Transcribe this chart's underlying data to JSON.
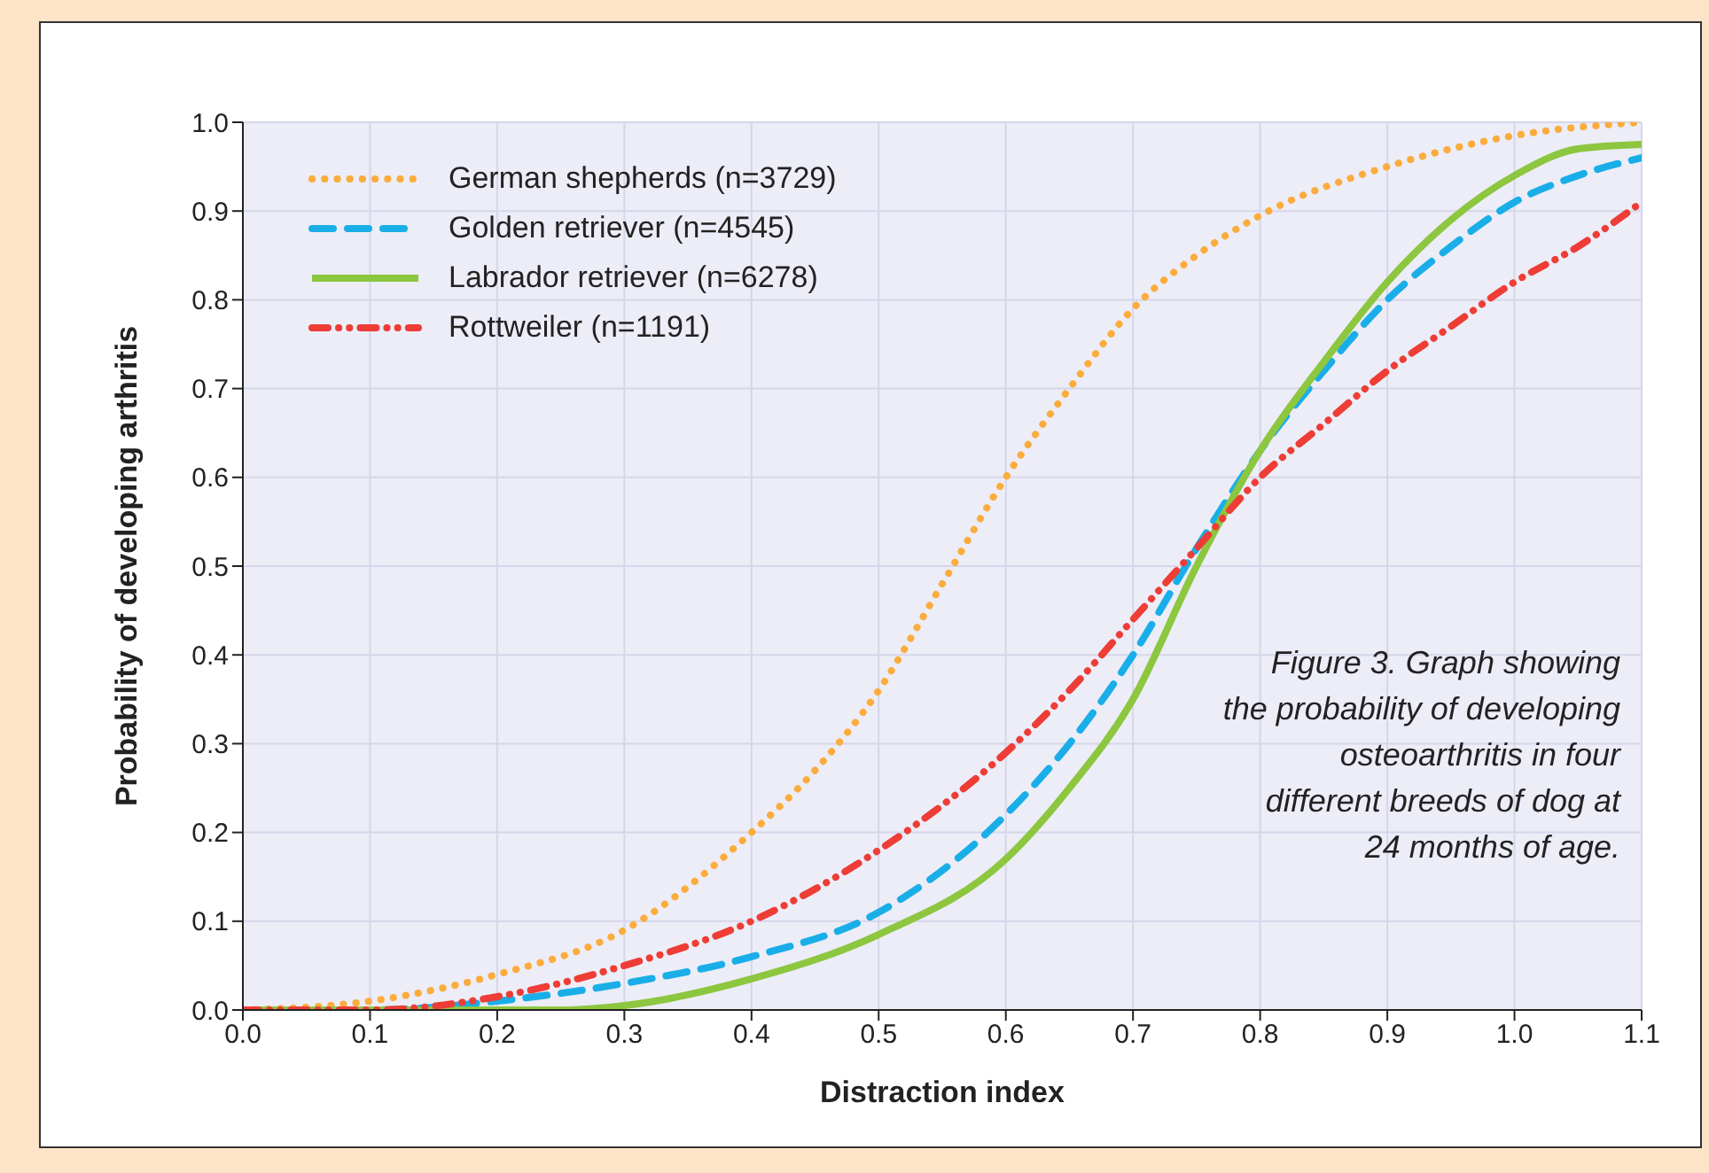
{
  "chart_data": {
    "type": "line",
    "xlabel": "Distraction index",
    "ylabel": "Probability of developing arthritis",
    "xlim": [
      0,
      1.1
    ],
    "xticks": [
      {
        "value": 0,
        "label": "0.0"
      },
      0.1,
      0.2,
      0.3,
      0.4,
      0.5,
      0.6,
      0.7,
      0.8,
      0.9,
      {
        "value": 1,
        "label": "1.0"
      },
      1.1
    ],
    "ylim": [
      0,
      1
    ],
    "yticks": [
      {
        "value": 0,
        "label": "0.0"
      },
      0.1,
      0.2,
      0.3,
      0.4,
      0.5,
      0.6,
      0.7,
      0.8,
      0.9,
      {
        "value": 1,
        "label": "1.0"
      }
    ],
    "grid": true,
    "legend": "top left",
    "marker": "none",
    "annotations": [
      "Figure 3. Graph showing the probability of developing osteoarthritis in four different breeds of dog at 24 months of age."
    ],
    "series": [
      {
        "name": "German shepherds (n=3729)",
        "color": "#fbac3c",
        "line_style": "dotted",
        "x": [
          0,
          0.1,
          0.2,
          0.3,
          0.4,
          0.45,
          0.5,
          0.55,
          0.6,
          0.65,
          0.7,
          0.75,
          0.8,
          0.9,
          1.0,
          1.1
        ],
        "values": [
          0,
          0.01,
          0.04,
          0.09,
          0.2,
          0.27,
          0.36,
          0.48,
          0.6,
          0.7,
          0.79,
          0.85,
          0.895,
          0.95,
          0.985,
          1.0
        ]
      },
      {
        "name": "Golden retriever (n=4545)",
        "color": "#1aaee8",
        "line_style": "dashed",
        "x": [
          0,
          0.1,
          0.2,
          0.3,
          0.4,
          0.5,
          0.6,
          0.65,
          0.7,
          0.75,
          0.8,
          0.85,
          0.9,
          0.95,
          1.0,
          1.05,
          1.1
        ],
        "values": [
          0,
          0,
          0.01,
          0.03,
          0.06,
          0.11,
          0.22,
          0.3,
          0.4,
          0.52,
          0.63,
          0.72,
          0.8,
          0.86,
          0.91,
          0.94,
          0.96
        ]
      },
      {
        "name": "Labrador retriever (n=6278)",
        "color": "#8dc63f",
        "line_style": "solid",
        "x": [
          0,
          0.1,
          0.2,
          0.25,
          0.3,
          0.4,
          0.5,
          0.6,
          0.65,
          0.7,
          0.75,
          0.8,
          0.85,
          0.9,
          0.95,
          1.0,
          1.05,
          1.1
        ],
        "values": [
          0,
          0,
          0,
          0,
          0.005,
          0.035,
          0.085,
          0.17,
          0.25,
          0.35,
          0.5,
          0.63,
          0.73,
          0.82,
          0.89,
          0.94,
          0.97,
          0.975
        ]
      },
      {
        "name": "Rottweiler (n=1191)",
        "color": "#ee3d36",
        "line_style": "dashdot",
        "x": [
          0,
          0.1,
          0.2,
          0.3,
          0.4,
          0.5,
          0.6,
          0.65,
          0.7,
          0.75,
          0.8,
          0.85,
          0.9,
          0.95,
          1.0,
          1.05,
          1.1
        ],
        "values": [
          0,
          0,
          0.015,
          0.05,
          0.1,
          0.18,
          0.29,
          0.36,
          0.44,
          0.52,
          0.6,
          0.66,
          0.72,
          0.77,
          0.82,
          0.86,
          0.91
        ]
      }
    ]
  }
}
